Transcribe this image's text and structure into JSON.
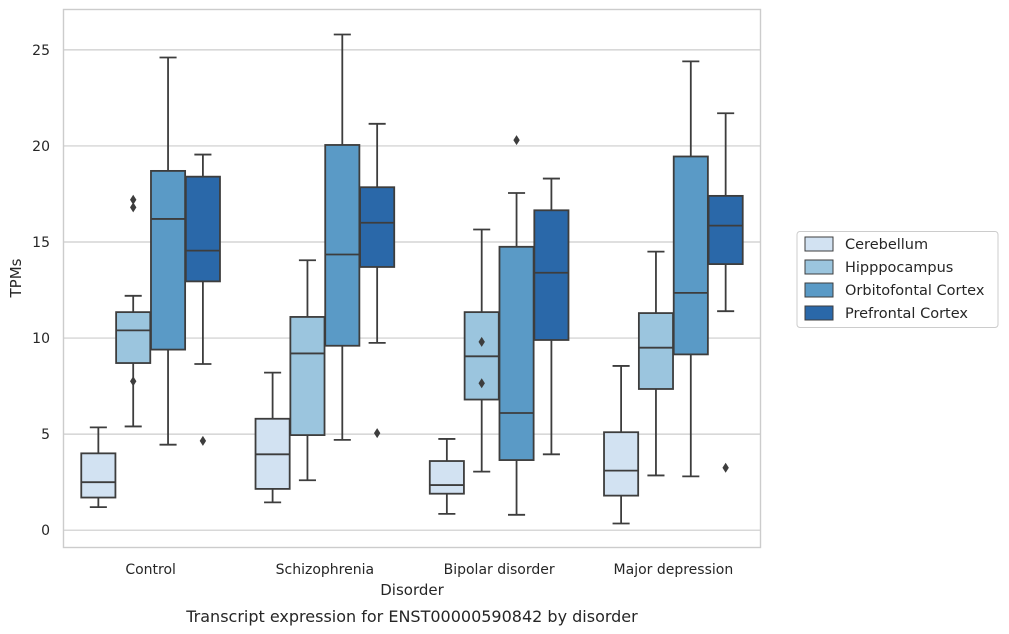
{
  "chart_data": {
    "type": "box",
    "xlabel": "Disorder",
    "ylabel": "TPMs",
    "caption": "Transcript expression for ENST00000590842 by disorder",
    "ylim": [
      -0.9,
      27.1
    ],
    "yticks": [
      0,
      5,
      10,
      15,
      20,
      25
    ],
    "grid": "horizontal",
    "legend_position": "right",
    "categories": [
      "Control",
      "Schizophrenia",
      "Bipolar disorder",
      "Major depression"
    ],
    "series": [
      {
        "name": "Cerebellum",
        "color": "#d2e2f2",
        "boxes": [
          {
            "whislo": 1.2,
            "q1": 1.7,
            "med": 2.5,
            "q3": 4.0,
            "whishi": 5.35,
            "fliers": []
          },
          {
            "whislo": 1.45,
            "q1": 2.15,
            "med": 3.95,
            "q3": 5.8,
            "whishi": 8.2,
            "fliers": []
          },
          {
            "whislo": 0.85,
            "q1": 1.9,
            "med": 2.35,
            "q3": 3.6,
            "whishi": 4.75,
            "fliers": []
          },
          {
            "whislo": 0.35,
            "q1": 1.8,
            "med": 3.1,
            "q3": 5.1,
            "whishi": 8.55,
            "fliers": []
          }
        ]
      },
      {
        "name": "Hipppocampus",
        "color": "#9bc5de",
        "boxes": [
          {
            "whislo": 5.4,
            "q1": 8.7,
            "med": 10.4,
            "q3": 11.35,
            "whishi": 12.2,
            "fliers": [
              7.75,
              16.8,
              17.2
            ]
          },
          {
            "whislo": 2.6,
            "q1": 4.95,
            "med": 9.2,
            "q3": 11.1,
            "whishi": 14.05,
            "fliers": []
          },
          {
            "whislo": 3.05,
            "q1": 6.8,
            "med": 9.05,
            "q3": 11.35,
            "whishi": 15.65,
            "fliers": [
              7.65,
              9.8
            ]
          },
          {
            "whislo": 2.85,
            "q1": 7.35,
            "med": 9.5,
            "q3": 11.3,
            "whishi": 14.5,
            "fliers": []
          }
        ]
      },
      {
        "name": "Orbitofontal Cortex",
        "color": "#5a9ac6",
        "boxes": [
          {
            "whislo": 4.45,
            "q1": 9.4,
            "med": 16.2,
            "q3": 18.7,
            "whishi": 24.6,
            "fliers": []
          },
          {
            "whislo": 4.7,
            "q1": 9.6,
            "med": 14.35,
            "q3": 20.05,
            "whishi": 25.8,
            "fliers": []
          },
          {
            "whislo": 0.8,
            "q1": 3.65,
            "med": 6.1,
            "q3": 14.75,
            "whishi": 17.55,
            "fliers": [
              20.3
            ]
          },
          {
            "whislo": 2.8,
            "q1": 9.15,
            "med": 12.35,
            "q3": 19.45,
            "whishi": 24.4,
            "fliers": []
          }
        ]
      },
      {
        "name": "Prefrontal Cortex",
        "color": "#2a68a9",
        "boxes": [
          {
            "whislo": 8.65,
            "q1": 12.95,
            "med": 14.55,
            "q3": 18.4,
            "whishi": 19.55,
            "fliers": [
              4.65
            ]
          },
          {
            "whislo": 9.75,
            "q1": 13.7,
            "med": 16.0,
            "q3": 17.85,
            "whishi": 21.15,
            "fliers": [
              5.05
            ]
          },
          {
            "whislo": 3.95,
            "q1": 9.9,
            "med": 13.4,
            "q3": 16.65,
            "whishi": 18.3,
            "fliers": []
          },
          {
            "whislo": 11.4,
            "q1": 13.85,
            "med": 15.85,
            "q3": 17.4,
            "whishi": 21.7,
            "fliers": [
              3.25
            ]
          }
        ]
      }
    ]
  }
}
